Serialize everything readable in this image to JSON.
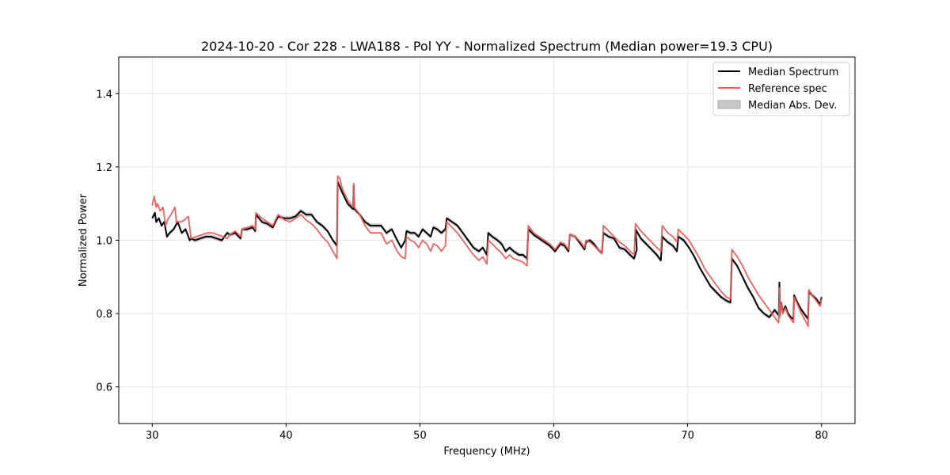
{
  "chart_data": {
    "type": "line",
    "title": "2024-10-20 - Cor 228 - LWA188 - Pol YY - Normalized Spectrum (Median power=19.3 CPU)",
    "xlabel": "Frequency (MHz)",
    "ylabel": "Normalized Power",
    "xlim": [
      27.5,
      82.5
    ],
    "ylim": [
      0.5,
      1.5
    ],
    "xticks": [
      30,
      40,
      50,
      60,
      70,
      80
    ],
    "xtick_labels": [
      "30",
      "40",
      "50",
      "60",
      "70",
      "80"
    ],
    "yticks": [
      0.6,
      0.8,
      1.0,
      1.2,
      1.4
    ],
    "ytick_labels": [
      "0.6",
      "0.8",
      "1.0",
      "1.2",
      "1.4"
    ],
    "grid": true,
    "legend_position": "top-right",
    "series": [
      {
        "name": "Median Spectrum",
        "color": "#000000",
        "x": [
          30.0,
          30.2,
          30.3,
          30.5,
          30.7,
          30.9,
          31.1,
          31.3,
          31.6,
          31.9,
          32.2,
          32.5,
          32.8,
          32.9,
          33.2,
          33.6,
          34.0,
          34.4,
          34.8,
          35.2,
          35.6,
          35.8,
          36.2,
          36.6,
          36.7,
          37.1,
          37.5,
          37.7,
          37.75,
          38.2,
          38.6,
          39.0,
          39.4,
          39.9,
          40.3,
          40.7,
          41.1,
          41.5,
          41.9,
          42.3,
          42.7,
          43.1,
          43.5,
          43.8,
          43.85,
          44.2,
          44.6,
          45.0,
          45.05,
          45.1,
          45.5,
          45.9,
          46.3,
          46.7,
          47.1,
          47.5,
          47.9,
          48.3,
          48.6,
          48.9,
          49.0,
          49.3,
          49.6,
          49.9,
          50.2,
          50.5,
          50.8,
          51.0,
          51.3,
          51.6,
          51.9,
          52.0,
          52.4,
          52.8,
          53.2,
          53.6,
          54.0,
          54.4,
          54.7,
          55.0,
          55.1,
          55.4,
          55.8,
          56.1,
          56.4,
          56.7,
          57.0,
          57.4,
          57.7,
          58.0,
          58.1,
          58.5,
          58.9,
          59.3,
          59.7,
          60.1,
          60.5,
          60.8,
          61.1,
          61.2,
          61.6,
          62.0,
          62.3,
          62.4,
          62.7,
          63.0,
          63.3,
          63.6,
          63.7,
          64.1,
          64.5,
          64.9,
          65.3,
          65.7,
          66.0,
          66.2,
          66.1,
          66.5,
          66.9,
          67.3,
          67.7,
          68.0,
          68.1,
          68.5,
          68.9,
          69.2,
          69.3,
          69.7,
          70.1,
          70.5,
          70.9,
          71.3,
          71.7,
          72.1,
          72.5,
          72.9,
          73.2,
          73.3,
          73.7,
          74.1,
          74.5,
          74.9,
          75.3,
          75.7,
          76.1,
          76.5,
          76.8,
          76.85,
          76.9,
          77.0,
          77.1,
          77.3,
          77.5,
          77.7,
          77.9,
          77.95,
          78.2,
          78.5,
          78.8,
          79.0,
          79.05,
          79.3,
          79.6,
          79.9,
          80.0
        ],
        "values": [
          1.06,
          1.075,
          1.05,
          1.06,
          1.04,
          1.05,
          1.01,
          1.02,
          1.03,
          1.05,
          1.02,
          1.03,
          1.0,
          1.005,
          1.0,
          1.005,
          1.01,
          1.01,
          1.005,
          1.0,
          1.02,
          1.015,
          1.02,
          1.005,
          1.03,
          1.03,
          1.035,
          1.025,
          1.07,
          1.05,
          1.045,
          1.035,
          1.065,
          1.06,
          1.06,
          1.065,
          1.08,
          1.07,
          1.07,
          1.05,
          1.04,
          1.025,
          1.0,
          0.985,
          1.16,
          1.13,
          1.1,
          1.085,
          1.15,
          1.085,
          1.07,
          1.05,
          1.04,
          1.04,
          1.04,
          1.02,
          1.03,
          1.0,
          0.98,
          1.0,
          1.025,
          1.02,
          1.02,
          1.01,
          1.03,
          1.02,
          1.01,
          1.035,
          1.03,
          1.02,
          1.03,
          1.06,
          1.05,
          1.04,
          1.02,
          1.0,
          0.98,
          0.97,
          0.98,
          0.96,
          1.02,
          1.01,
          1.0,
          0.99,
          0.97,
          0.98,
          0.97,
          0.96,
          0.96,
          0.95,
          1.03,
          1.015,
          1.005,
          0.995,
          0.985,
          0.97,
          0.99,
          0.985,
          0.97,
          1.015,
          1.01,
          0.99,
          0.975,
          0.995,
          1.0,
          0.99,
          0.975,
          0.965,
          1.02,
          1.01,
          1.005,
          0.98,
          0.975,
          0.96,
          0.95,
          0.975,
          1.03,
          1.005,
          0.99,
          0.975,
          0.96,
          0.945,
          1.01,
          0.995,
          0.985,
          0.97,
          1.01,
          1.0,
          0.98,
          0.955,
          0.925,
          0.9,
          0.875,
          0.86,
          0.845,
          0.835,
          0.83,
          0.95,
          0.93,
          0.9,
          0.87,
          0.845,
          0.815,
          0.8,
          0.79,
          0.81,
          0.795,
          0.885,
          0.8,
          0.83,
          0.805,
          0.82,
          0.8,
          0.79,
          0.785,
          0.85,
          0.83,
          0.81,
          0.795,
          0.785,
          0.86,
          0.85,
          0.84,
          0.825,
          0.845
        ]
      },
      {
        "name": "Reference spec",
        "color": "#ef5a5a",
        "x": [
          30.0,
          30.15,
          30.3,
          30.4,
          30.6,
          30.8,
          31.0,
          31.2,
          31.4,
          31.7,
          31.8,
          32.1,
          32.4,
          32.7,
          32.9,
          33.3,
          33.7,
          34.1,
          34.5,
          34.9,
          35.3,
          35.6,
          35.8,
          36.2,
          36.6,
          36.7,
          37.1,
          37.5,
          37.7,
          37.75,
          38.2,
          38.6,
          39.0,
          39.4,
          39.9,
          40.3,
          40.7,
          41.1,
          41.5,
          41.9,
          42.3,
          42.7,
          43.1,
          43.5,
          43.8,
          43.85,
          44.0,
          44.2,
          44.6,
          45.0,
          45.05,
          45.1,
          45.5,
          45.9,
          46.3,
          46.7,
          47.1,
          47.5,
          47.9,
          48.3,
          48.6,
          48.9,
          49.0,
          49.3,
          49.6,
          49.9,
          50.2,
          50.5,
          50.8,
          51.0,
          51.3,
          51.6,
          51.9,
          52.0,
          52.4,
          52.8,
          53.2,
          53.6,
          54.0,
          54.4,
          54.7,
          55.0,
          55.1,
          55.4,
          55.8,
          56.1,
          56.4,
          56.7,
          57.0,
          57.4,
          57.7,
          58.0,
          58.1,
          58.5,
          58.9,
          59.3,
          59.7,
          60.1,
          60.5,
          60.8,
          61.1,
          61.2,
          61.6,
          62.0,
          62.3,
          62.4,
          62.7,
          63.0,
          63.3,
          63.6,
          63.7,
          64.1,
          64.5,
          64.9,
          65.3,
          65.7,
          66.0,
          66.1,
          66.5,
          66.9,
          67.3,
          67.7,
          68.0,
          68.1,
          68.5,
          68.9,
          69.2,
          69.3,
          69.7,
          70.1,
          70.5,
          70.9,
          71.3,
          71.7,
          72.1,
          72.5,
          72.9,
          73.2,
          73.3,
          73.7,
          74.1,
          74.5,
          74.9,
          75.3,
          75.7,
          76.1,
          76.5,
          76.8,
          76.85,
          76.9,
          77.0,
          77.1,
          77.3,
          77.5,
          77.7,
          77.9,
          77.95,
          78.2,
          78.5,
          78.8,
          79.0,
          79.05,
          79.3,
          79.6,
          79.9,
          80.0
        ],
        "values": [
          1.095,
          1.12,
          1.09,
          1.1,
          1.08,
          1.09,
          1.04,
          1.06,
          1.07,
          1.09,
          1.05,
          1.05,
          1.055,
          1.065,
          1.005,
          1.01,
          1.015,
          1.02,
          1.02,
          1.015,
          1.01,
          1.005,
          1.015,
          1.025,
          1.01,
          1.03,
          1.035,
          1.04,
          1.03,
          1.075,
          1.06,
          1.05,
          1.04,
          1.07,
          1.055,
          1.05,
          1.06,
          1.07,
          1.055,
          1.045,
          1.03,
          1.01,
          0.995,
          0.97,
          0.95,
          1.175,
          1.17,
          1.14,
          1.11,
          1.09,
          1.155,
          1.09,
          1.07,
          1.04,
          1.02,
          1.02,
          1.02,
          0.99,
          1.0,
          0.97,
          0.955,
          0.95,
          1.01,
          1.0,
          0.995,
          0.98,
          1.0,
          0.99,
          0.97,
          0.99,
          0.985,
          0.97,
          0.985,
          1.05,
          1.035,
          1.02,
          1.0,
          0.98,
          0.96,
          0.945,
          0.955,
          0.935,
          1.0,
          0.99,
          0.975,
          0.965,
          0.95,
          0.96,
          0.95,
          0.945,
          0.94,
          0.93,
          1.04,
          1.02,
          1.01,
          1.0,
          0.99,
          0.975,
          0.995,
          0.99,
          0.975,
          1.015,
          1.01,
          0.995,
          0.98,
          1.0,
          0.995,
          0.985,
          0.975,
          0.965,
          1.04,
          1.025,
          1.01,
          0.995,
          0.985,
          0.97,
          0.96,
          1.045,
          1.025,
          1.01,
          0.995,
          0.98,
          0.97,
          1.04,
          1.02,
          1.01,
          0.995,
          1.03,
          1.015,
          1.0,
          0.975,
          0.95,
          0.92,
          0.9,
          0.88,
          0.86,
          0.845,
          0.84,
          0.975,
          0.955,
          0.93,
          0.9,
          0.875,
          0.85,
          0.83,
          0.81,
          0.79,
          0.775,
          0.87,
          0.79,
          0.83,
          0.8,
          0.815,
          0.795,
          0.785,
          0.775,
          0.845,
          0.825,
          0.8,
          0.78,
          0.765,
          0.865,
          0.85,
          0.835,
          0.82,
          0.84
        ]
      }
    ],
    "mad_band": {
      "name": "Median Abs. Dev.",
      "color": "#c8c8c8",
      "halfwidth": 0.006
    }
  }
}
